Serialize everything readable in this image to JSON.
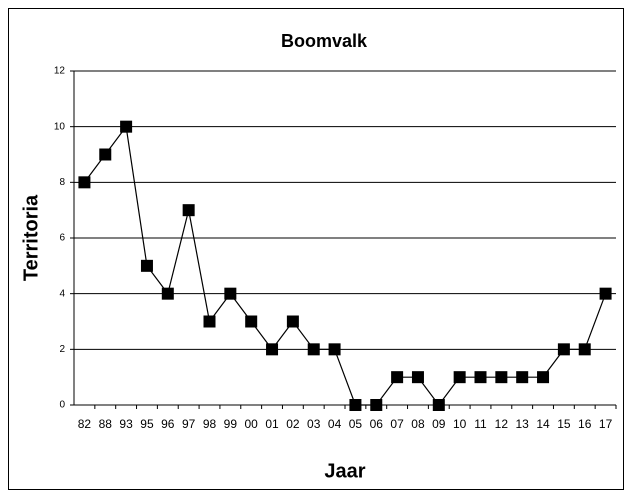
{
  "chart_data": {
    "type": "line",
    "title": "Boomvalk",
    "x_label": "Jaar",
    "y_label": "Territoria",
    "categories": [
      "82",
      "88",
      "93",
      "95",
      "96",
      "97",
      "98",
      "99",
      "00",
      "01",
      "02",
      "03",
      "04",
      "05",
      "06",
      "07",
      "08",
      "09",
      "10",
      "11",
      "12",
      "13",
      "14",
      "15",
      "16",
      "17"
    ],
    "series": [
      {
        "name": "Boomvalk",
        "color": "#000000",
        "values": [
          8,
          9,
          10,
          5,
          4,
          7,
          3,
          4,
          3,
          2,
          3,
          2,
          2,
          0,
          0,
          1,
          1,
          0,
          1,
          1,
          1,
          1,
          1,
          2,
          2,
          4
        ]
      }
    ],
    "ylim": [
      0,
      12
    ],
    "yticks": [
      0,
      2,
      4,
      6,
      8,
      10,
      12
    ],
    "grid": true
  }
}
